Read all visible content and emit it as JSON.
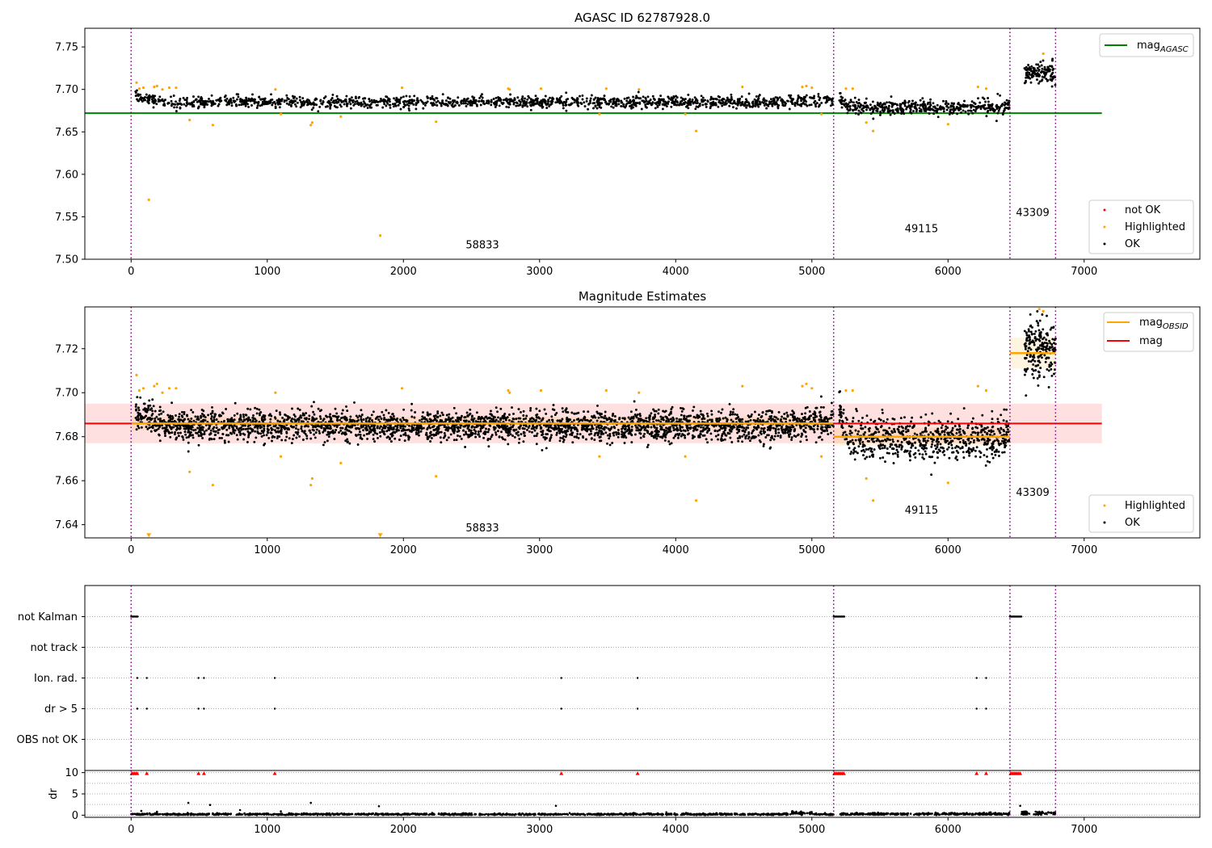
{
  "chart_data": [
    {
      "type": "scatter",
      "title": "AGASC ID 62787928.0",
      "xlim": [
        -340,
        7850
      ],
      "ylim": [
        7.5,
        7.772
      ],
      "x_ticks": [
        0,
        1000,
        2000,
        3000,
        4000,
        5000,
        6000,
        7000
      ],
      "y_ticks": [
        7.5,
        7.55,
        7.6,
        7.65,
        7.7,
        7.75
      ],
      "grid": false,
      "obsid_boundaries": [
        0,
        5160,
        6455,
        6790
      ],
      "obsid_labels": [
        {
          "text": "58833",
          "x": 2580,
          "y": 7.513
        },
        {
          "text": "49115",
          "x": 5805,
          "y": 7.532
        },
        {
          "text": "43309",
          "x": 6622,
          "y": 7.551
        }
      ],
      "segments": [
        {
          "x0": 30,
          "x1": 5160,
          "start": 7.692,
          "end": 7.687,
          "center": 7.685,
          "spread": 0.0035,
          "count": 1500
        },
        {
          "x0": 5200,
          "x1": 6450,
          "start": 7.693,
          "end": 7.682,
          "center": 7.679,
          "spread": 0.0045,
          "count": 450
        },
        {
          "x0": 6560,
          "x1": 6790,
          "start": 7.718,
          "end": 7.716,
          "center": 7.72,
          "spread": 0.0065,
          "count": 120
        }
      ],
      "highlighted": [
        [
          40,
          7.708
        ],
        [
          60,
          7.701
        ],
        [
          90,
          7.702
        ],
        [
          130,
          7.57
        ],
        [
          170,
          7.703
        ],
        [
          190,
          7.704
        ],
        [
          230,
          7.7
        ],
        [
          280,
          7.702
        ],
        [
          330,
          7.702
        ],
        [
          430,
          7.664
        ],
        [
          600,
          7.658
        ],
        [
          1060,
          7.7
        ],
        [
          1100,
          7.671
        ],
        [
          1320,
          7.658
        ],
        [
          1330,
          7.661
        ],
        [
          1540,
          7.668
        ],
        [
          1830,
          7.528
        ],
        [
          1990,
          7.702
        ],
        [
          2240,
          7.662
        ],
        [
          2770,
          7.701
        ],
        [
          2780,
          7.7
        ],
        [
          3010,
          7.701
        ],
        [
          3440,
          7.671
        ],
        [
          3490,
          7.701
        ],
        [
          3730,
          7.7
        ],
        [
          4070,
          7.671
        ],
        [
          4150,
          7.651
        ],
        [
          4490,
          7.703
        ],
        [
          4930,
          7.703
        ],
        [
          4960,
          7.704
        ],
        [
          5000,
          7.702
        ],
        [
          5070,
          7.671
        ],
        [
          5250,
          7.701
        ],
        [
          5300,
          7.701
        ],
        [
          5400,
          7.661
        ],
        [
          5450,
          7.651
        ],
        [
          6000,
          7.659
        ],
        [
          6220,
          7.703
        ],
        [
          6280,
          7.701
        ],
        [
          6700,
          7.742
        ]
      ],
      "not_ok": [],
      "reference_line": {
        "value": 7.672,
        "x0": -340,
        "x1": 7130
      },
      "legend_upper": {
        "location": "upper right",
        "entries": [
          "mag",
          "AGASC"
        ]
      },
      "legend_lower": {
        "location": "lower right",
        "entries": [
          "not OK",
          "Highlighted",
          "OK"
        ]
      }
    },
    {
      "type": "scatter",
      "title": "Magnitude Estimates",
      "xlim": [
        -340,
        7850
      ],
      "ylim": [
        7.634,
        7.739
      ],
      "x_ticks": [
        0,
        1000,
        2000,
        3000,
        4000,
        5000,
        6000,
        7000
      ],
      "y_ticks": [
        7.64,
        7.66,
        7.68,
        7.7,
        7.72
      ],
      "grid": false,
      "obsid_boundaries": [
        0,
        5160,
        6455,
        6790
      ],
      "obsid_labels": [
        {
          "text": "58833",
          "x": 2580,
          "y": 7.637
        },
        {
          "text": "49115",
          "x": 5805,
          "y": 7.645
        },
        {
          "text": "43309",
          "x": 6622,
          "y": 7.653
        }
      ],
      "segments": [
        {
          "x0": 30,
          "x1": 5160,
          "start": 7.692,
          "end": 7.687,
          "center": 7.685,
          "spread": 0.0035,
          "count": 3000
        },
        {
          "x0": 5200,
          "x1": 6450,
          "start": 7.693,
          "end": 7.682,
          "center": 7.679,
          "spread": 0.0045,
          "count": 700
        },
        {
          "x0": 6560,
          "x1": 6790,
          "start": 7.718,
          "end": 7.716,
          "center": 7.72,
          "spread": 0.0065,
          "count": 200
        }
      ],
      "highlighted": [
        [
          40,
          7.708
        ],
        [
          60,
          7.701
        ],
        [
          90,
          7.702
        ],
        [
          170,
          7.703
        ],
        [
          190,
          7.704
        ],
        [
          230,
          7.7
        ],
        [
          280,
          7.702
        ],
        [
          330,
          7.702
        ],
        [
          430,
          7.664
        ],
        [
          600,
          7.658
        ],
        [
          1060,
          7.7
        ],
        [
          1100,
          7.671
        ],
        [
          1320,
          7.658
        ],
        [
          1330,
          7.661
        ],
        [
          1540,
          7.668
        ],
        [
          1990,
          7.702
        ],
        [
          2240,
          7.662
        ],
        [
          2770,
          7.701
        ],
        [
          2780,
          7.7
        ],
        [
          3010,
          7.701
        ],
        [
          3440,
          7.671
        ],
        [
          3490,
          7.701
        ],
        [
          3730,
          7.7
        ],
        [
          4070,
          7.671
        ],
        [
          4150,
          7.651
        ],
        [
          4490,
          7.703
        ],
        [
          4930,
          7.703
        ],
        [
          4960,
          7.704
        ],
        [
          5000,
          7.702
        ],
        [
          5070,
          7.671
        ],
        [
          5250,
          7.701
        ],
        [
          5300,
          7.701
        ],
        [
          5400,
          7.661
        ],
        [
          5450,
          7.651
        ],
        [
          6000,
          7.659
        ],
        [
          6220,
          7.703
        ],
        [
          6280,
          7.701
        ],
        [
          6670,
          7.738
        ],
        [
          6700,
          7.737
        ]
      ],
      "below_limit_markers": [
        [
          130,
          7.635
        ],
        [
          1830,
          7.635
        ]
      ],
      "obsid_means": [
        {
          "x0": 0,
          "x1": 5160,
          "value": 7.686
        },
        {
          "x0": 5160,
          "x1": 6455,
          "value": 7.68
        },
        {
          "x0": 6455,
          "x1": 6790,
          "value": 7.718
        }
      ],
      "obsid_bands": [
        {
          "x0": 0,
          "x1": 5160,
          "lo": 7.683,
          "hi": 7.689
        },
        {
          "x0": 5160,
          "x1": 6455,
          "lo": 7.676,
          "hi": 7.684
        },
        {
          "x0": 6455,
          "x1": 6790,
          "lo": 7.711,
          "hi": 7.725
        }
      ],
      "mean_line": {
        "value": 7.686,
        "x0": -340,
        "x1": 7130
      },
      "mean_band": {
        "lo": 7.677,
        "hi": 7.695
      },
      "legend_upper": {
        "location": "upper right",
        "entries": [
          "mag",
          "OBSID",
          "mag"
        ]
      },
      "legend_lower": {
        "location": "lower right",
        "entries": [
          "Highlighted",
          "OK"
        ]
      }
    },
    {
      "type": "scatter",
      "title": "",
      "xlim": [
        -340,
        7850
      ],
      "flag_rows": [
        "not Kalman",
        "not track",
        "Ion. rad.",
        "dr > 5",
        "OBS not OK"
      ],
      "flag_events": {
        "not Kalman": [
          [
            0,
            50
          ],
          [
            5160,
            5240
          ],
          [
            6455,
            6540
          ]
        ],
        "Ion. rad.": [
          [
            45,
            45
          ],
          [
            115,
            115
          ],
          [
            495,
            495
          ],
          [
            535,
            535
          ],
          [
            1055,
            1055
          ],
          [
            3160,
            3160
          ],
          [
            3720,
            3720
          ],
          [
            6210,
            6210
          ],
          [
            6280,
            6280
          ]
        ],
        "dr > 5": [
          [
            45,
            45
          ],
          [
            115,
            115
          ],
          [
            495,
            495
          ],
          [
            535,
            535
          ],
          [
            1055,
            1055
          ],
          [
            3160,
            3160
          ],
          [
            3720,
            3720
          ],
          [
            6210,
            6210
          ],
          [
            6280,
            6280
          ]
        ]
      },
      "obsid_boundaries": [
        0,
        5160,
        6455,
        6790
      ]
    },
    {
      "type": "scatter",
      "title": "",
      "ylabel": "dr",
      "xlim": [
        -340,
        7850
      ],
      "ylim": [
        -0.5,
        10.5
      ],
      "x_ticks": [
        0,
        1000,
        2000,
        3000,
        4000,
        5000,
        6000,
        7000
      ],
      "y_ticks": [
        0,
        5,
        10
      ],
      "dr_clipped_x": [
        5,
        15,
        25,
        35,
        45,
        115,
        495,
        535,
        1055,
        3160,
        3720,
        5165,
        5175,
        5185,
        5195,
        5205,
        5215,
        5225,
        5235,
        6210,
        6280,
        6460,
        6470,
        6480,
        6490,
        6500,
        6510,
        6520,
        6530
      ],
      "dr_outliers": [
        [
          420,
          2.9
        ],
        [
          580,
          2.4
        ],
        [
          800,
          1.2
        ],
        [
          1320,
          2.9
        ],
        [
          1820,
          2.1
        ],
        [
          3120,
          2.2
        ],
        [
          6530,
          2.2
        ],
        [
          75,
          1.0
        ],
        [
          190,
          0.8
        ],
        [
          1100,
          0.9
        ]
      ],
      "obsid_boundaries": [
        0,
        5160,
        6455,
        6790
      ]
    }
  ],
  "colors": {
    "ok": "#000000",
    "highlighted": "#ffa500",
    "not_ok": "#ff0000",
    "agasc_line": "#008000",
    "obsid_line": "#ffa500",
    "mean_line": "#ff0000",
    "boundary": "#800080",
    "grid": "#b0b0b0"
  }
}
